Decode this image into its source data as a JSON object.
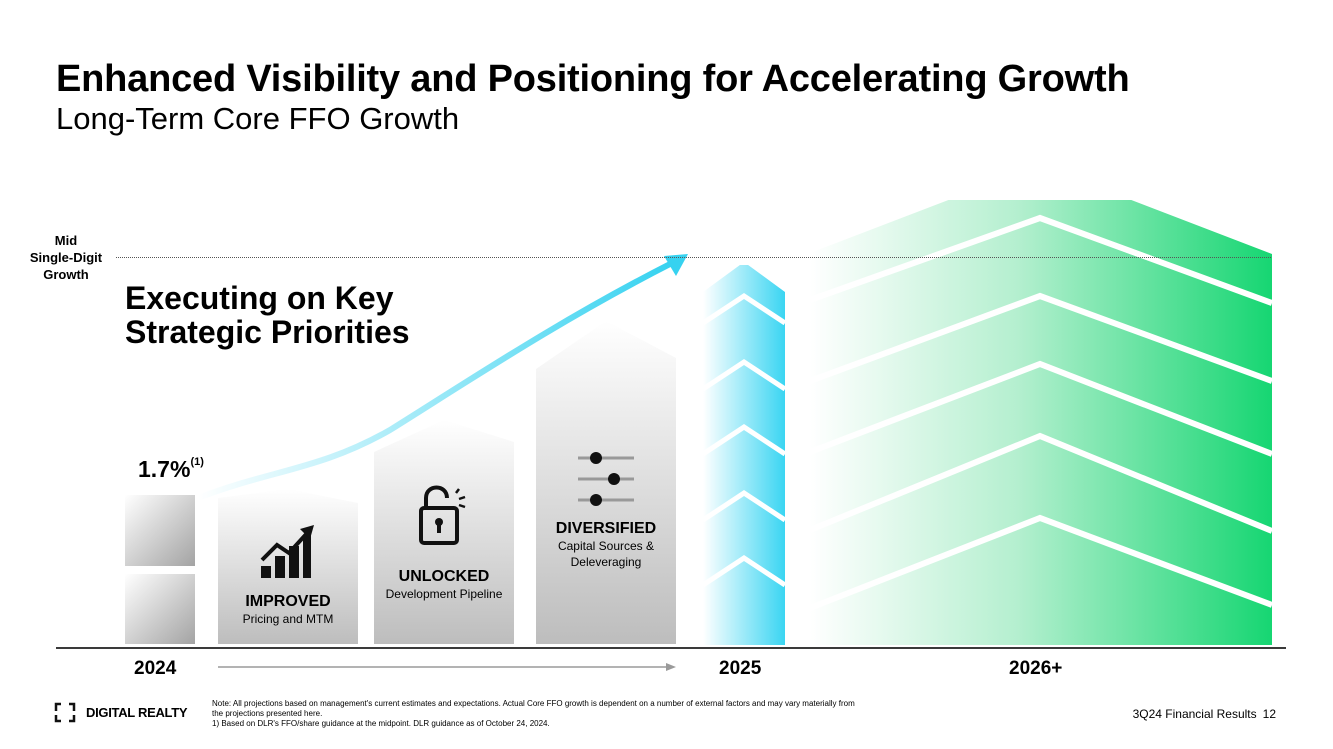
{
  "header": {
    "title": "Enhanced Visibility and Positioning for Accelerating Growth",
    "subtitle": "Long-Term Core FFO Growth"
  },
  "growth_level": {
    "label_line1": "Mid",
    "label_line2": "Single-Digit",
    "label_line3": "Growth"
  },
  "headline": {
    "line1": "Executing on Key",
    "line2": "Strategic Priorities"
  },
  "current": {
    "value": "1.7%",
    "footnote_ref": "(1)"
  },
  "priorities": [
    {
      "title": "IMPROVED",
      "subtitle": "Pricing and MTM",
      "icon": "growth-chart-icon"
    },
    {
      "title": "UNLOCKED",
      "subtitle": "Development Pipeline",
      "icon": "unlocked-padlock-icon"
    },
    {
      "title": "DIVERSIFIED",
      "subtitle_line1": "Capital Sources &",
      "subtitle_line2": "Deleveraging",
      "icon": "sliders-icon"
    }
  ],
  "timeline": {
    "year_start": "2024",
    "year_mid": "2025",
    "year_end": "2026+"
  },
  "footer": {
    "brand": "DIGITAL REALTY",
    "note_line1": "Note: All projections based on management's current estimates and expectations. Actual Core FFO growth is dependent on a number of external factors and may vary materially from",
    "note_line2": "the projections presented here.",
    "note_line3": "1) Based on DLR's FFO/share guidance at the midpoint. DLR guidance as of October 24, 2024.",
    "report": "3Q24 Financial Results",
    "page": "12"
  },
  "colors": {
    "accent_cyan": "#45d6f0",
    "accent_green": "#1dd67a",
    "gray_dark": "#9a9a9a",
    "text": "#000000"
  }
}
